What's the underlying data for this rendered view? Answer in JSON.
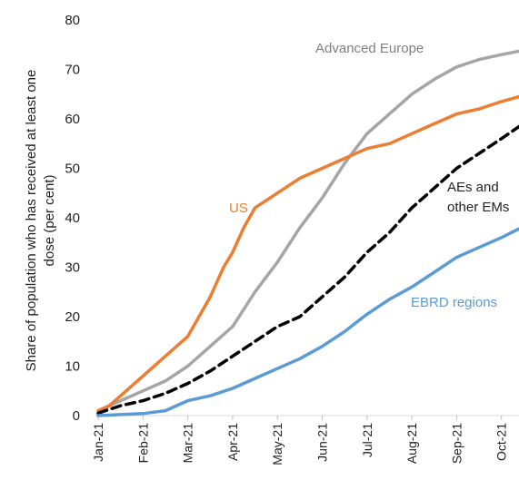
{
  "chart_data": {
    "type": "line",
    "title": "",
    "ylabel_lines": [
      "Share of population  who has received at least one",
      "dose (per cent)"
    ],
    "xlabel": "",
    "ylim": [
      0,
      80
    ],
    "yticks": [
      0,
      10,
      20,
      30,
      40,
      50,
      60,
      70,
      80
    ],
    "x_categories": [
      "Jan-21",
      "Feb-21",
      "Mar-21",
      "Apr-21",
      "May-21",
      "Jun-21",
      "Jul-21",
      "Aug-21",
      "Sep-21",
      "Oct-21"
    ],
    "grid": false,
    "legend": "inline labels",
    "series": [
      {
        "name": "Advanced Europe",
        "color": "#A5A5A5",
        "style": "solid",
        "points": [
          [
            0,
            0.3
          ],
          [
            0.25,
            2
          ],
          [
            0.5,
            3
          ],
          [
            1,
            5
          ],
          [
            1.5,
            7
          ],
          [
            2,
            10
          ],
          [
            2.5,
            14
          ],
          [
            3,
            18
          ],
          [
            3.5,
            25
          ],
          [
            4,
            31
          ],
          [
            4.5,
            38
          ],
          [
            5,
            44
          ],
          [
            5.5,
            51
          ],
          [
            6,
            57
          ],
          [
            6.5,
            61
          ],
          [
            7,
            65
          ],
          [
            7.5,
            68
          ],
          [
            8,
            70.5
          ],
          [
            8.5,
            72
          ],
          [
            9,
            73
          ],
          [
            9.4,
            73.7
          ]
        ]
      },
      {
        "name": "US",
        "color": "#ED7D31",
        "style": "solid",
        "points": [
          [
            0,
            1
          ],
          [
            0.25,
            2
          ],
          [
            0.5,
            4
          ],
          [
            1,
            8
          ],
          [
            1.5,
            12
          ],
          [
            2,
            16
          ],
          [
            2.5,
            24
          ],
          [
            2.8,
            30
          ],
          [
            3,
            33
          ],
          [
            3.25,
            38
          ],
          [
            3.5,
            42
          ],
          [
            4,
            45
          ],
          [
            4.5,
            48
          ],
          [
            5,
            50
          ],
          [
            5.5,
            52
          ],
          [
            6,
            54
          ],
          [
            6.5,
            55
          ],
          [
            7,
            57
          ],
          [
            7.5,
            59
          ],
          [
            8,
            61
          ],
          [
            8.5,
            62
          ],
          [
            9,
            63.5
          ],
          [
            9.4,
            64.5
          ]
        ]
      },
      {
        "name": "AEs and other EMs",
        "label_lines": [
          "AEs and",
          "other EMs"
        ],
        "color": "#000000",
        "style": "dashed",
        "points": [
          [
            0,
            0.5
          ],
          [
            0.5,
            2
          ],
          [
            1,
            3
          ],
          [
            1.5,
            4.5
          ],
          [
            2,
            6.5
          ],
          [
            2.5,
            9
          ],
          [
            3,
            12
          ],
          [
            3.5,
            15
          ],
          [
            4,
            18
          ],
          [
            4.5,
            20
          ],
          [
            5,
            24
          ],
          [
            5.5,
            28
          ],
          [
            6,
            33
          ],
          [
            6.5,
            37
          ],
          [
            7,
            42
          ],
          [
            7.5,
            46
          ],
          [
            8,
            50
          ],
          [
            8.5,
            53
          ],
          [
            9,
            56
          ],
          [
            9.4,
            58.5
          ]
        ]
      },
      {
        "name": "EBRD regions",
        "color": "#5B9BD5",
        "style": "solid",
        "points": [
          [
            0,
            0
          ],
          [
            0.5,
            0.2
          ],
          [
            1,
            0.4
          ],
          [
            1.5,
            1
          ],
          [
            2,
            3
          ],
          [
            2.5,
            4
          ],
          [
            3,
            5.5
          ],
          [
            3.5,
            7.5
          ],
          [
            4,
            9.5
          ],
          [
            4.5,
            11.5
          ],
          [
            5,
            14
          ],
          [
            5.5,
            17
          ],
          [
            6,
            20.5
          ],
          [
            6.5,
            23.5
          ],
          [
            7,
            26
          ],
          [
            7.5,
            29
          ],
          [
            8,
            32
          ],
          [
            8.5,
            34
          ],
          [
            9,
            36
          ],
          [
            9.4,
            37.8
          ]
        ]
      }
    ]
  }
}
